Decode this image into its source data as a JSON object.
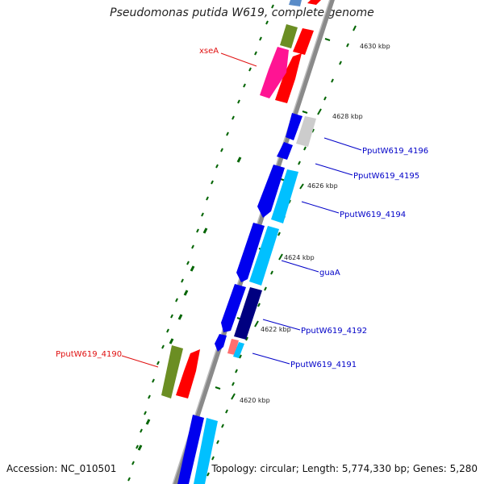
{
  "title": "Pseudomonas putida W619, complete genome",
  "footer": {
    "accession": "Accession: NC_010501",
    "summary": "Topology: circular; Length: 5,774,330 bp; Genes: 5,280"
  },
  "ticks": [
    "4630 kbp",
    "4628 kbp",
    "4626 kbp",
    "4624 kbp",
    "4622 kbp",
    "4620 kbp"
  ],
  "gene_labels": [
    {
      "name": "xseA",
      "color": "#e01010"
    },
    {
      "name": "PputW619_4196",
      "color": "#0000c8"
    },
    {
      "name": "PputW619_4195",
      "color": "#0000c8"
    },
    {
      "name": "PputW619_4194",
      "color": "#0000c8"
    },
    {
      "name": "guaA",
      "color": "#0000c8"
    },
    {
      "name": "PputW619_4192",
      "color": "#0000c8"
    },
    {
      "name": "PputW619_4191",
      "color": "#0000c8"
    },
    {
      "name": "PputW619_4190",
      "color": "#e01010"
    }
  ],
  "colors": {
    "backbone": "#8a8a8a",
    "cds_forward": "#0000ee",
    "cds_reverse_light": "#00c0ff",
    "cds_dark": "#000080",
    "cog_green": "#6b8e23",
    "cog_red": "#ff0000",
    "cog_magenta": "#ff1493",
    "gc_dots": "#006400",
    "label_red": "#e01010",
    "label_blue": "#0000c8"
  }
}
